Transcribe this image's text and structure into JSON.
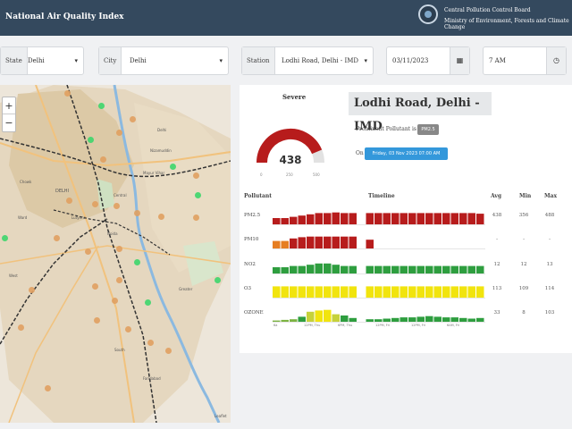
{
  "header": {
    "title": "National Air Quality Index",
    "org_line1": "Central Pollution Control Board",
    "org_line2": "Ministry of Environment, Forests and Climate Change"
  },
  "filters": {
    "state_label": "State",
    "state_value": "Delhi",
    "city_label": "City",
    "city_value": "Delhi",
    "station_label": "Station",
    "station_value": "Lodhi Road, Delhi - IMD",
    "date_value": "03/11/2023",
    "time_value": "7 AM"
  },
  "map": {
    "labels": [
      "DELHI",
      "Central",
      "Nizamuddin",
      "Delhi",
      "Noida",
      "South",
      "West",
      "Chowk",
      "Mayur Vihar",
      "Lutyens",
      "Greater",
      "Ward",
      "Faridabad"
    ],
    "attribution": "Leaflet"
  },
  "aqi": {
    "category": "Severe",
    "value": "438",
    "fraction": 0.876,
    "ticks": [
      "0",
      "250",
      "500"
    ],
    "category_color": "#b71c1c"
  },
  "station_name": "Lodhi Road, Delhi - IMD",
  "prominent_label": "Prominent Pollutant is",
  "prominent_value": "PM2.5",
  "on_label": "On",
  "datetime": "Friday, 03 Nov 2023 07:00 AM",
  "table": {
    "headers": [
      "Pollutant",
      "Timeline",
      "Avg",
      "Min",
      "Max"
    ],
    "rows": [
      {
        "name": "PM2.5",
        "avg": "438",
        "min": "356",
        "max": "488",
        "pattern": "solid-red",
        "levels": [
          0.5,
          0.5,
          0.6,
          0.7,
          0.8,
          0.9,
          0.9,
          0.95,
          0.9,
          0.9,
          0,
          0.9,
          0.9,
          0.9,
          0.9,
          0.9,
          0.9,
          0.9,
          0.9,
          0.9,
          0.9,
          0.9,
          0.9,
          0.9,
          0.85
        ],
        "colors": [
          "#b71c1c"
        ]
      },
      {
        "name": "PM10",
        "avg": "-",
        "min": "-",
        "max": "-",
        "pattern": "pm10",
        "levels": [
          0.6,
          0.6,
          0.8,
          0.9,
          0.95,
          0.95,
          0.95,
          0.95,
          0.95,
          0.95,
          0,
          0.7,
          0,
          0,
          0,
          0,
          0,
          0,
          0,
          0,
          0,
          0,
          0,
          0,
          0
        ],
        "colors": [
          "#e67e22",
          "#e67e22",
          "#b71c1c",
          "#b71c1c",
          "#b71c1c",
          "#b71c1c",
          "#b71c1c",
          "#b71c1c",
          "#b71c1c",
          "#b71c1c",
          "#b71c1c",
          "#b71c1c"
        ]
      },
      {
        "name": "NO2",
        "avg": "12",
        "min": "12",
        "max": "13",
        "pattern": "green",
        "levels": [
          0.5,
          0.5,
          0.6,
          0.6,
          0.7,
          0.8,
          0.8,
          0.7,
          0.6,
          0.6,
          0,
          0.6,
          0.6,
          0.6,
          0.6,
          0.6,
          0.6,
          0.6,
          0.6,
          0.6,
          0.6,
          0.6,
          0.6,
          0.6,
          0.6
        ],
        "colors": [
          "#2e9e3f"
        ]
      },
      {
        "name": "O3",
        "avg": "113",
        "min": "109",
        "max": "114",
        "pattern": "yellow",
        "levels": [
          0.9,
          0.9,
          0.9,
          0.9,
          0.9,
          0.9,
          0.9,
          0.9,
          0.9,
          0.9,
          0,
          0.9,
          0.9,
          0.9,
          0.9,
          0.9,
          0.9,
          0.9,
          0.9,
          0.9,
          0.9,
          0.9,
          0.9,
          0.9,
          0.9
        ],
        "colors": [
          "#f1e40e"
        ]
      },
      {
        "name": "OZONE",
        "avg": "33",
        "min": "8",
        "max": "103",
        "pattern": "mixed",
        "levels": [
          0.1,
          0.15,
          0.2,
          0.4,
          0.8,
          0.9,
          0.95,
          0.6,
          0.5,
          0.3,
          0,
          0.2,
          0.2,
          0.25,
          0.3,
          0.35,
          0.35,
          0.4,
          0.45,
          0.4,
          0.35,
          0.35,
          0.3,
          0.25,
          0.3
        ],
        "colors": [
          "#7cb342",
          "#7cb342",
          "#7cb342",
          "#2e9e3f",
          "#c6d23a",
          "#f1e40e",
          "#f1e40e",
          "#c6d23a",
          "#2e9e3f",
          "#2e9e3f",
          "#2e9e3f",
          "#2e9e3f"
        ]
      }
    ],
    "axis_labels": [
      "6a",
      "12PM, Thu",
      "6PM, Thu",
      "12PM, Fri",
      "12PM, Fri",
      "6AM, Fri"
    ]
  }
}
